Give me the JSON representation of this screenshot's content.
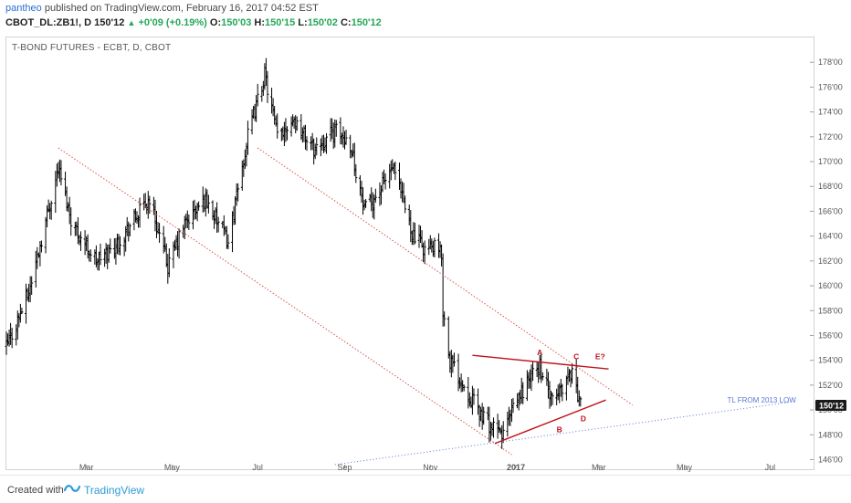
{
  "header": {
    "author": "pantheo",
    "published_text": "published on TradingView.com, February 16, 2017 04:52 EST",
    "symbol": "CBOT_DL:ZB1!, D",
    "last": "150'12",
    "change_symbol": "▲",
    "change": "+0'09 (+0.19%)",
    "open_label": "O:",
    "open": "150'03",
    "high_label": "H:",
    "high": "150'15",
    "low_label": "L:",
    "low": "150'02",
    "close_label": "C:",
    "close": "150'12"
  },
  "footer": {
    "created_with": "Created with",
    "brand": "TradingView"
  },
  "colors": {
    "bars": "#000000",
    "channel": "#e05050",
    "triangle": "#c0121b",
    "trendline": "#5a78d6",
    "price_tag_bg": "#1a1a1a",
    "axis_text": "#555555"
  },
  "chart_data": {
    "type": "ohlc",
    "title": "T-BOND FUTURES - ECBT, D, CBOT",
    "xlabel": "",
    "ylabel": "",
    "y_axis_labels": [
      "178'00",
      "176'00",
      "174'00",
      "172'00",
      "170'00",
      "168'00",
      "166'00",
      "164'00",
      "162'00",
      "160'00",
      "158'00",
      "156'00",
      "154'00",
      "152'00",
      "150'00",
      "148'00",
      "146'00"
    ],
    "y_axis_values": [
      178,
      176,
      174,
      172,
      170,
      168,
      166,
      164,
      162,
      160,
      158,
      156,
      154,
      152,
      150,
      148,
      146
    ],
    "ylim": [
      145.3,
      180.0
    ],
    "x_axis_labels": [
      "Mar",
      "May",
      "Jul",
      "Sep",
      "Nov",
      "2017",
      "Mar",
      "May",
      "Jul"
    ],
    "x_axis_dates": [
      "2016-03-01",
      "2016-05-01",
      "2016-07-01",
      "2016-09-01",
      "2016-11-01",
      "2017-01-01",
      "2017-03-01",
      "2017-05-01",
      "2017-07-01"
    ],
    "xlim": [
      "2016-01-04",
      "2017-08-01"
    ],
    "last_price_label": "150'12",
    "last_price": 150.375,
    "close_waypoints": [
      [
        "2016-01-04",
        155.0
      ],
      [
        "2016-01-20",
        159.5
      ],
      [
        "2016-02-10",
        169.5
      ],
      [
        "2016-02-20",
        165.0
      ],
      [
        "2016-03-08",
        162.0
      ],
      [
        "2016-03-20",
        163.0
      ],
      [
        "2016-04-15",
        167.0
      ],
      [
        "2016-04-28",
        161.5
      ],
      [
        "2016-05-10",
        165.0
      ],
      [
        "2016-05-25",
        167.0
      ],
      [
        "2016-06-10",
        163.5
      ],
      [
        "2016-06-24",
        172.0
      ],
      [
        "2016-07-06",
        177.0
      ],
      [
        "2016-07-15",
        172.0
      ],
      [
        "2016-07-26",
        173.5
      ],
      [
        "2016-08-10",
        171.0
      ],
      [
        "2016-08-25",
        172.5
      ],
      [
        "2016-09-05",
        171.5
      ],
      [
        "2016-09-15",
        166.0
      ],
      [
        "2016-09-25",
        167.5
      ],
      [
        "2016-10-05",
        169.5
      ],
      [
        "2016-10-12",
        167.0
      ],
      [
        "2016-10-20",
        164.0
      ],
      [
        "2016-10-28",
        163.0
      ],
      [
        "2016-11-04",
        163.0
      ],
      [
        "2016-11-09",
        162.5
      ],
      [
        "2016-11-10",
        158.0
      ],
      [
        "2016-11-15",
        154.0
      ],
      [
        "2016-11-25",
        152.0
      ],
      [
        "2016-12-05",
        150.0
      ],
      [
        "2016-12-15",
        148.5
      ],
      [
        "2016-12-22",
        148.0
      ],
      [
        "2016-12-30",
        150.0
      ],
      [
        "2017-01-10",
        152.5
      ],
      [
        "2017-01-18",
        153.5
      ],
      [
        "2017-01-27",
        150.5
      ],
      [
        "2017-02-06",
        152.5
      ],
      [
        "2017-02-10",
        153.2
      ],
      [
        "2017-02-16",
        150.375
      ]
    ],
    "annotations": [
      {
        "label": "A",
        "date": "2017-01-18",
        "price": 154.4
      },
      {
        "label": "B",
        "date": "2017-02-01",
        "price": 148.2
      },
      {
        "label": "C",
        "date": "2017-02-13",
        "price": 154.1
      },
      {
        "label": "D",
        "date": "2017-02-18",
        "price": 149.1
      },
      {
        "label": "E?",
        "date": "2017-03-02",
        "price": 154.1
      },
      {
        "label": "TL FROM 2013 LOW",
        "date": "2017-06-25",
        "price": 150.6
      }
    ],
    "lines": [
      {
        "name": "channel-upper",
        "from": [
          "2016-07-01",
          171.1
        ],
        "to": [
          "2017-03-25",
          150.4
        ],
        "style": "dotted"
      },
      {
        "name": "channel-lower",
        "from": [
          "2016-02-10",
          171.1
        ],
        "to": [
          "2016-12-29",
          146.4
        ],
        "style": "dotted"
      },
      {
        "name": "triangle-upper",
        "from": [
          "2016-12-01",
          154.4
        ],
        "to": [
          "2017-03-08",
          153.3
        ],
        "style": "solid"
      },
      {
        "name": "triangle-lower",
        "from": [
          "2016-12-17",
          147.3
        ],
        "to": [
          "2017-03-06",
          150.8
        ],
        "style": "solid"
      },
      {
        "name": "tl-2013-low",
        "from": [
          "2016-08-25",
          145.6
        ],
        "to": [
          "2017-07-20",
          150.7
        ],
        "style": "dotted"
      }
    ]
  }
}
